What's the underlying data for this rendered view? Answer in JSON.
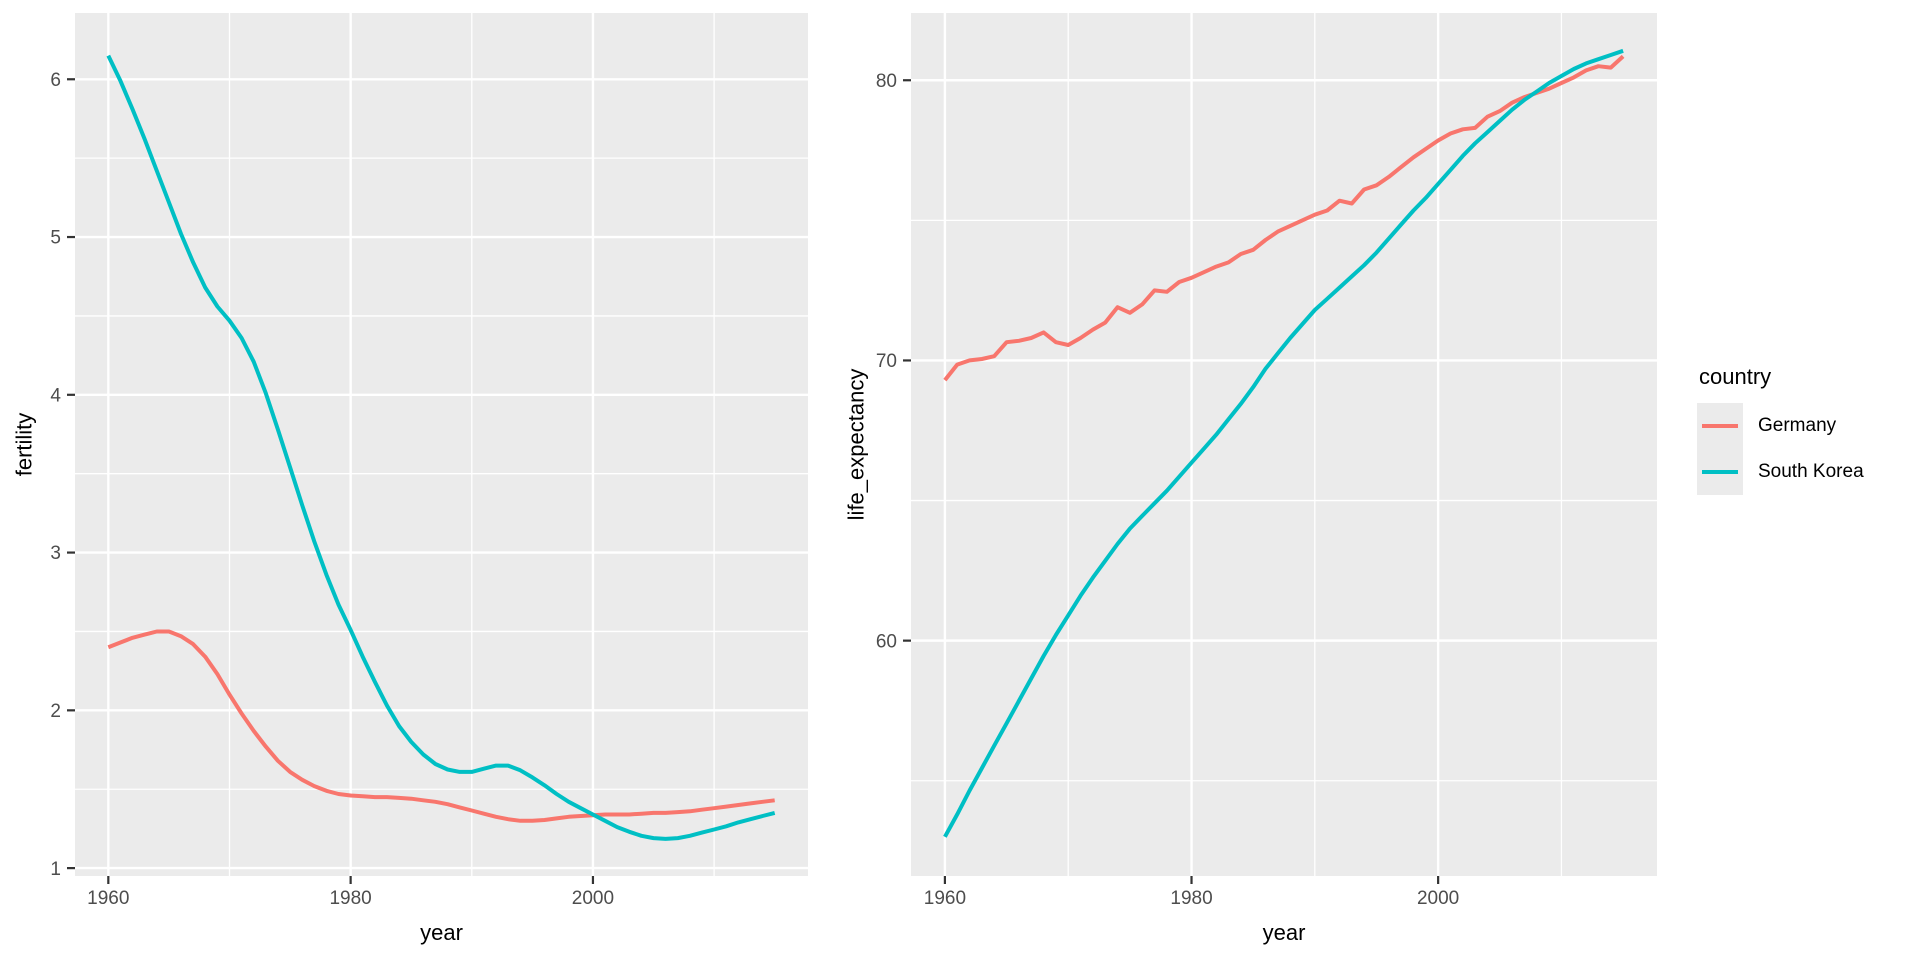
{
  "figure": {
    "description": "Two ggplot-style line charts: fertility by year and life_expectancy by year for Germany and South Korea"
  },
  "colors": {
    "panel_bg": "#EBEBEB",
    "grid": "#FFFFFF",
    "tick_label": "#4D4D4D",
    "tick_mark": "#333333",
    "axis_title": "#000000",
    "germany": "#F8766D",
    "south_korea": "#00BFC4"
  },
  "legend": {
    "title": "country",
    "items": [
      {
        "label": "Germany",
        "color": "#F8766D"
      },
      {
        "label": "South Korea",
        "color": "#00BFC4"
      }
    ]
  },
  "chart_data": [
    {
      "type": "line",
      "title": "",
      "xlabel": "year",
      "ylabel": "fertility",
      "xlim": [
        1957.25,
        2017.75
      ],
      "ylim": [
        0.95,
        6.42
      ],
      "x_ticks": [
        1960,
        1980,
        2000
      ],
      "x_minor": [
        1970,
        1990,
        2010
      ],
      "y_ticks": [
        1,
        2,
        3,
        4,
        5,
        6
      ],
      "y_minor": [
        1.5,
        2.5,
        3.5,
        4.5,
        5.5
      ],
      "grid": "on",
      "x": [
        1960,
        1961,
        1962,
        1963,
        1964,
        1965,
        1966,
        1967,
        1968,
        1969,
        1970,
        1971,
        1972,
        1973,
        1974,
        1975,
        1976,
        1977,
        1978,
        1979,
        1980,
        1981,
        1982,
        1983,
        1984,
        1985,
        1986,
        1987,
        1988,
        1989,
        1990,
        1991,
        1992,
        1993,
        1994,
        1995,
        1996,
        1997,
        1998,
        1999,
        2000,
        2001,
        2002,
        2003,
        2004,
        2005,
        2006,
        2007,
        2008,
        2009,
        2010,
        2011,
        2012,
        2013,
        2014,
        2015
      ],
      "series": [
        {
          "name": "Germany",
          "color": "#F8766D",
          "values": [
            2.4,
            2.43,
            2.46,
            2.48,
            2.5,
            2.5,
            2.47,
            2.42,
            2.34,
            2.23,
            2.1,
            1.98,
            1.87,
            1.77,
            1.68,
            1.61,
            1.56,
            1.52,
            1.49,
            1.47,
            1.46,
            1.455,
            1.45,
            1.45,
            1.445,
            1.44,
            1.43,
            1.42,
            1.405,
            1.385,
            1.365,
            1.345,
            1.325,
            1.31,
            1.3,
            1.3,
            1.305,
            1.315,
            1.325,
            1.33,
            1.335,
            1.34,
            1.34,
            1.34,
            1.345,
            1.35,
            1.35,
            1.355,
            1.36,
            1.37,
            1.38,
            1.39,
            1.4,
            1.41,
            1.42,
            1.43
          ]
        },
        {
          "name": "South Korea",
          "color": "#00BFC4",
          "values": [
            6.15,
            5.99,
            5.81,
            5.62,
            5.42,
            5.22,
            5.02,
            4.84,
            4.68,
            4.56,
            4.47,
            4.36,
            4.21,
            4.01,
            3.78,
            3.54,
            3.3,
            3.07,
            2.86,
            2.67,
            2.51,
            2.34,
            2.18,
            2.03,
            1.9,
            1.8,
            1.72,
            1.66,
            1.625,
            1.61,
            1.61,
            1.63,
            1.65,
            1.65,
            1.62,
            1.575,
            1.525,
            1.47,
            1.42,
            1.38,
            1.34,
            1.3,
            1.26,
            1.23,
            1.205,
            1.19,
            1.185,
            1.19,
            1.205,
            1.225,
            1.245,
            1.265,
            1.29,
            1.31,
            1.33,
            1.35
          ]
        }
      ]
    },
    {
      "type": "line",
      "title": "",
      "xlabel": "year",
      "ylabel": "life_expectancy",
      "xlim": [
        1957.25,
        2017.75
      ],
      "ylim": [
        51.6,
        82.4
      ],
      "x_ticks": [
        1960,
        1980,
        2000
      ],
      "x_minor": [
        1970,
        1990,
        2010
      ],
      "y_ticks": [
        60,
        70,
        80
      ],
      "y_minor": [
        55,
        65,
        75
      ],
      "grid": "on",
      "x": [
        1960,
        1961,
        1962,
        1963,
        1964,
        1965,
        1966,
        1967,
        1968,
        1969,
        1970,
        1971,
        1972,
        1973,
        1974,
        1975,
        1976,
        1977,
        1978,
        1979,
        1980,
        1981,
        1982,
        1983,
        1984,
        1985,
        1986,
        1987,
        1988,
        1989,
        1990,
        1991,
        1992,
        1993,
        1994,
        1995,
        1996,
        1997,
        1998,
        1999,
        2000,
        2001,
        2002,
        2003,
        2004,
        2005,
        2006,
        2007,
        2008,
        2009,
        2010,
        2011,
        2012,
        2013,
        2014,
        2015
      ],
      "series": [
        {
          "name": "Germany",
          "color": "#F8766D",
          "values": [
            69.3,
            69.85,
            70.0,
            70.05,
            70.15,
            70.65,
            70.7,
            70.8,
            71.0,
            70.65,
            70.55,
            70.8,
            71.1,
            71.35,
            71.9,
            71.7,
            72.0,
            72.5,
            72.45,
            72.8,
            72.95,
            73.15,
            73.35,
            73.5,
            73.8,
            73.95,
            74.3,
            74.6,
            74.8,
            75.0,
            75.2,
            75.35,
            75.7,
            75.6,
            76.1,
            76.25,
            76.55,
            76.9,
            77.25,
            77.55,
            77.85,
            78.1,
            78.25,
            78.3,
            78.7,
            78.9,
            79.2,
            79.4,
            79.55,
            79.7,
            79.9,
            80.1,
            80.35,
            80.5,
            80.45,
            80.85
          ]
        },
        {
          "name": "South Korea",
          "color": "#00BFC4",
          "values": [
            53.0,
            53.8,
            54.65,
            55.45,
            56.25,
            57.05,
            57.85,
            58.65,
            59.45,
            60.2,
            60.9,
            61.6,
            62.25,
            62.85,
            63.45,
            64.0,
            64.45,
            64.9,
            65.35,
            65.85,
            66.35,
            66.85,
            67.35,
            67.9,
            68.45,
            69.05,
            69.7,
            70.25,
            70.8,
            71.3,
            71.8,
            72.2,
            72.6,
            73.0,
            73.4,
            73.85,
            74.35,
            74.85,
            75.35,
            75.8,
            76.3,
            76.8,
            77.3,
            77.75,
            78.15,
            78.55,
            78.95,
            79.3,
            79.6,
            79.9,
            80.15,
            80.4,
            80.6,
            80.75,
            80.9,
            81.05
          ]
        }
      ]
    }
  ]
}
